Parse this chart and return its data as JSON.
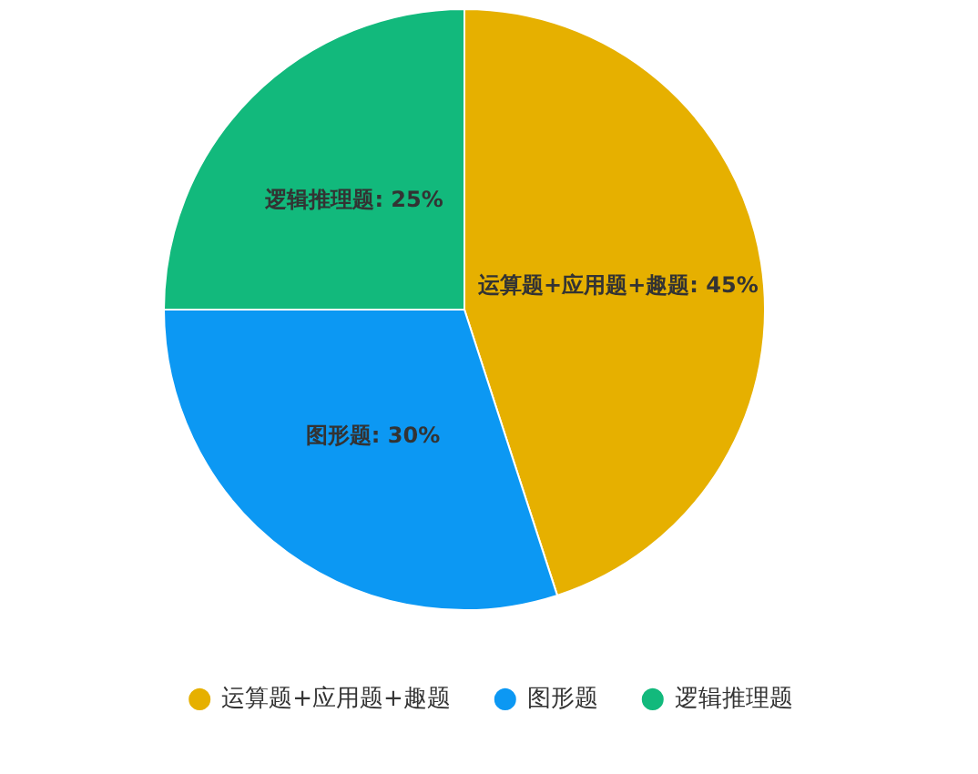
{
  "chart_data": {
    "type": "pie",
    "categories": [
      "运算题+应用题+趣题",
      "图形题",
      "逻辑推理题"
    ],
    "values": [
      45,
      30,
      25
    ],
    "value_labels": [
      "运算题+应用题+趣题: 45%",
      "图形题: 30%",
      "逻辑推理题: 25%"
    ],
    "colors": [
      "#e6b000",
      "#0c98f3",
      "#12b97c"
    ],
    "legend": "bottom"
  }
}
